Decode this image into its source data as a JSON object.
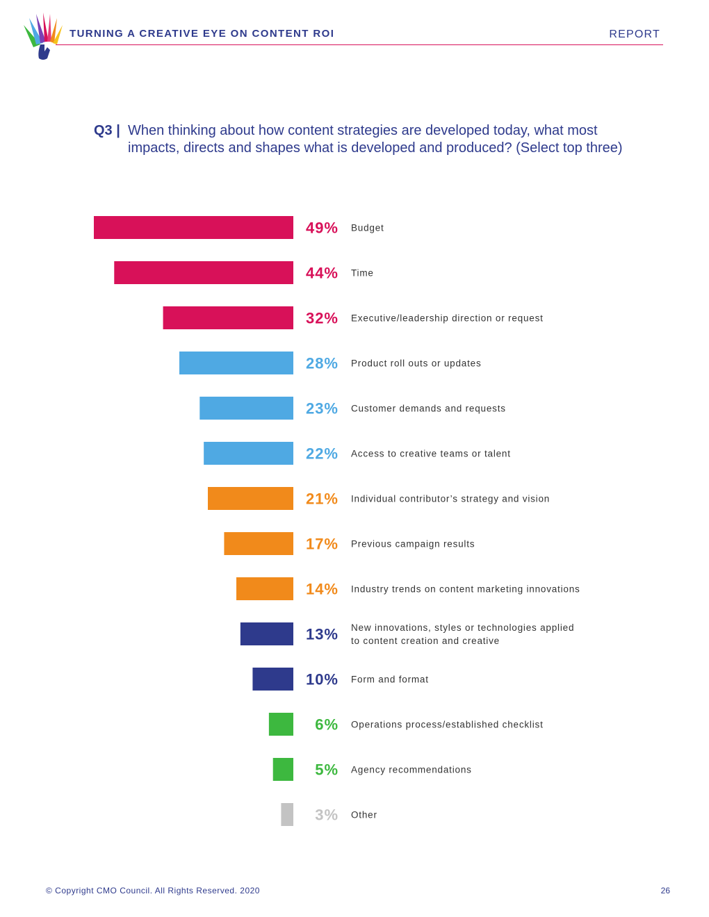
{
  "header": {
    "title": "TURNING A CREATIVE EYE ON CONTENT ROI",
    "report_label": "REPORT"
  },
  "question": {
    "number": "Q3 |",
    "text": "When thinking about how content strategies are developed today, what most impacts, directs and shapes what is developed and produced? (Select top three)"
  },
  "colors": {
    "magenta": "#d81159",
    "light_blue": "#4fa9e3",
    "orange": "#f18a1b",
    "navy": "#2e3a8c",
    "green": "#3db83f",
    "gray": "#c3c3c3",
    "label_text": "#333333"
  },
  "chart_data": {
    "type": "bar",
    "orientation": "horizontal",
    "title": "When thinking about how content strategies are developed today, what most impacts, directs and shapes what is developed and produced? (Select top three)",
    "xlim": [
      0,
      49
    ],
    "value_suffix": "%",
    "categories": [
      [
        "Budget"
      ],
      [
        "Time"
      ],
      [
        "Executive/leadership direction or request"
      ],
      [
        "Product roll outs or updates"
      ],
      [
        "Customer demands and requests"
      ],
      [
        "Access to creative teams or talent"
      ],
      [
        "Individual contributor’s strategy and vision"
      ],
      [
        "Previous campaign results"
      ],
      [
        "Industry trends on content marketing innovations"
      ],
      [
        "New innovations, styles or technologies applied",
        "to content creation and creative"
      ],
      [
        "Form and format"
      ],
      [
        "Operations process/established checklist"
      ],
      [
        "Agency recommendations"
      ],
      [
        "Other"
      ]
    ],
    "values": [
      49,
      44,
      32,
      28,
      23,
      22,
      21,
      17,
      14,
      13,
      10,
      6,
      5,
      3
    ],
    "value_labels": [
      "49%",
      "44%",
      "32%",
      "28%",
      "23%",
      "22%",
      "21%",
      "17%",
      "14%",
      "13%",
      "10%",
      "6%",
      "5%",
      "3%"
    ],
    "bar_colors": [
      "#d81159",
      "#d81159",
      "#d81159",
      "#4fa9e3",
      "#4fa9e3",
      "#4fa9e3",
      "#f18a1b",
      "#f18a1b",
      "#f18a1b",
      "#2e3a8c",
      "#2e3a8c",
      "#3db83f",
      "#3db83f",
      "#c3c3c3"
    ]
  },
  "footer": {
    "copyright": "© Copyright CMO Council. All Rights Reserved. 2020",
    "page_number": "26"
  }
}
